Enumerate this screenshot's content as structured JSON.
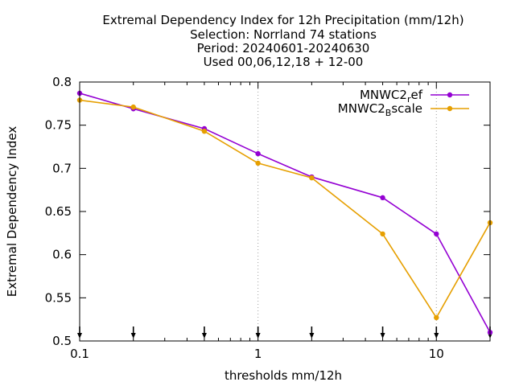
{
  "chart_data": {
    "type": "line",
    "title_lines": [
      "Extremal Dependency Index  for 12h Precipitation (mm/12h)",
      "Selection: Norrland     74 stations",
      "Period: 20240601-20240630",
      "Used 00,06,12,18 + 12-00"
    ],
    "xlabel": "thresholds mm/12h",
    "ylabel": "Extremal Dependency Index",
    "x_scale": "log",
    "xlim": [
      0.1,
      20
    ],
    "ylim": [
      0.5,
      0.8
    ],
    "x_ticks": [
      0.1,
      1,
      10
    ],
    "x_tick_labels": [
      "0.1",
      "1",
      "10"
    ],
    "y_ticks": [
      0.5,
      0.55,
      0.6,
      0.65,
      0.7,
      0.75,
      0.8
    ],
    "y_tick_labels": [
      "0.5",
      "0.55",
      "0.6",
      "0.65",
      "0.7",
      "0.75",
      "0.8"
    ],
    "grid": "dotted vertical lines at 1 and 10",
    "legend_position": "top-right",
    "threshold_markers": [
      0.1,
      0.2,
      0.5,
      1,
      2,
      5,
      10,
      20
    ],
    "x": [
      0.1,
      0.2,
      0.5,
      1,
      2,
      5,
      10,
      20
    ],
    "series": [
      {
        "name": "MNWC2_ref",
        "legend_main": "MNWC2",
        "legend_sub": "r",
        "legend_rest": "ef",
        "color": "#9400d3",
        "values": [
          0.787,
          0.769,
          0.746,
          0.717,
          0.69,
          0.666,
          0.624,
          0.51
        ]
      },
      {
        "name": "MNWC2_Bscale",
        "legend_main": "MNWC2",
        "legend_sub": "B",
        "legend_rest": "scale",
        "color": "#e69f00",
        "values": [
          0.779,
          0.771,
          0.743,
          0.706,
          0.689,
          0.624,
          0.527,
          0.637
        ]
      }
    ]
  }
}
